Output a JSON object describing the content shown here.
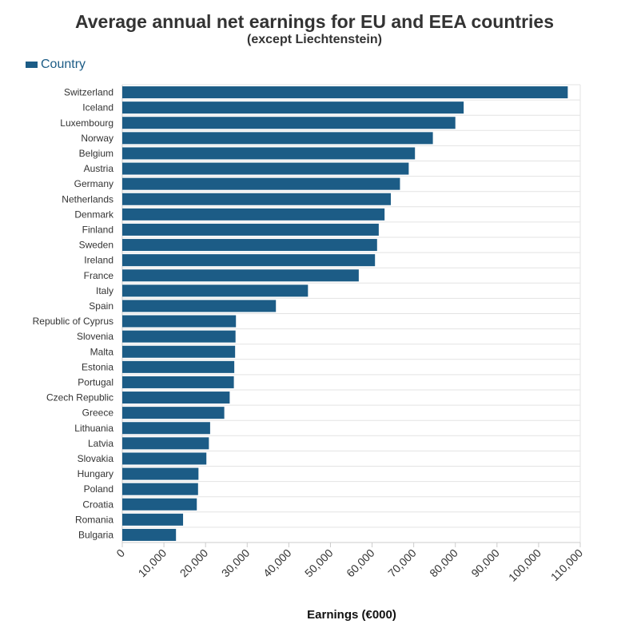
{
  "chart_data": {
    "type": "bar",
    "orientation": "horizontal",
    "title": "Average annual net earnings for EU and EEA countries",
    "subtitle": "(except Liechtenstein)",
    "xlabel": "Earnings (€000)",
    "ylabel": "",
    "xlim": [
      0,
      110000
    ],
    "xticks": [
      "0",
      "10,000",
      "20,000",
      "30,000",
      "40,000",
      "50,000",
      "60,000",
      "70,000",
      "80,000",
      "90,000",
      "100,000",
      "110,000"
    ],
    "xtick_values": [
      0,
      10000,
      20000,
      30000,
      40000,
      50000,
      60000,
      70000,
      80000,
      90000,
      100000,
      110000
    ],
    "grid": true,
    "legend_position": "top-left",
    "categories": [
      "Switzerland",
      "Iceland",
      "Luxembourg",
      "Norway",
      "Belgium",
      "Austria",
      "Germany",
      "Netherlands",
      "Denmark",
      "Finland",
      "Sweden",
      "Ireland",
      "France",
      "Italy",
      "Spain",
      "Republic of Cyprus",
      "Slovenia",
      "Malta",
      "Estonia",
      "Portugal",
      "Czech Republic",
      "Greece",
      "Lithuania",
      "Latvia",
      "Slovakia",
      "Hungary",
      "Poland",
      "Croatia",
      "Romania",
      "Bulgaria"
    ],
    "series": [
      {
        "name": "Country",
        "color": "#1c5c86",
        "values": [
          107000,
          82000,
          80000,
          74600,
          70300,
          68800,
          66700,
          64500,
          63000,
          61600,
          61200,
          60700,
          56800,
          44600,
          36900,
          27300,
          27200,
          27100,
          26900,
          26800,
          25800,
          24500,
          21100,
          20800,
          20200,
          18300,
          18200,
          17900,
          14600,
          12900
        ]
      }
    ]
  }
}
